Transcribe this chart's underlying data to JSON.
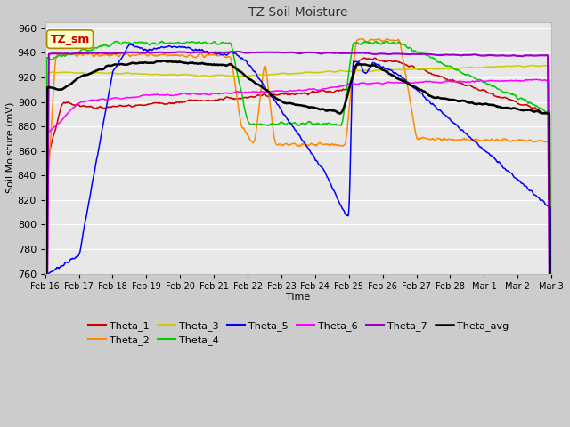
{
  "title": "TZ Soil Moisture",
  "xlabel": "Time",
  "ylabel": "Soil Moisture (mV)",
  "ylim": [
    760,
    965
  ],
  "yticks": [
    760,
    780,
    800,
    820,
    840,
    860,
    880,
    900,
    920,
    940,
    960
  ],
  "colors": {
    "Theta_1": "#cc0000",
    "Theta_2": "#ff8800",
    "Theta_3": "#cccc00",
    "Theta_4": "#00cc00",
    "Theta_5": "#0000ff",
    "Theta_6": "#ff00ff",
    "Theta_7": "#9900cc",
    "Theta_avg": "#000000"
  },
  "label_box": "TZ_sm",
  "x_labels": [
    "Feb 16",
    "Feb 17",
    "Feb 18",
    "Feb 19",
    "Feb 20",
    "Feb 21",
    "Feb 22",
    "Feb 23",
    "Feb 24",
    "Feb 25",
    "Feb 26",
    "Feb 27",
    "Feb 28",
    "Mar 1",
    "Mar 2",
    "Mar 3"
  ],
  "n_points": 960
}
